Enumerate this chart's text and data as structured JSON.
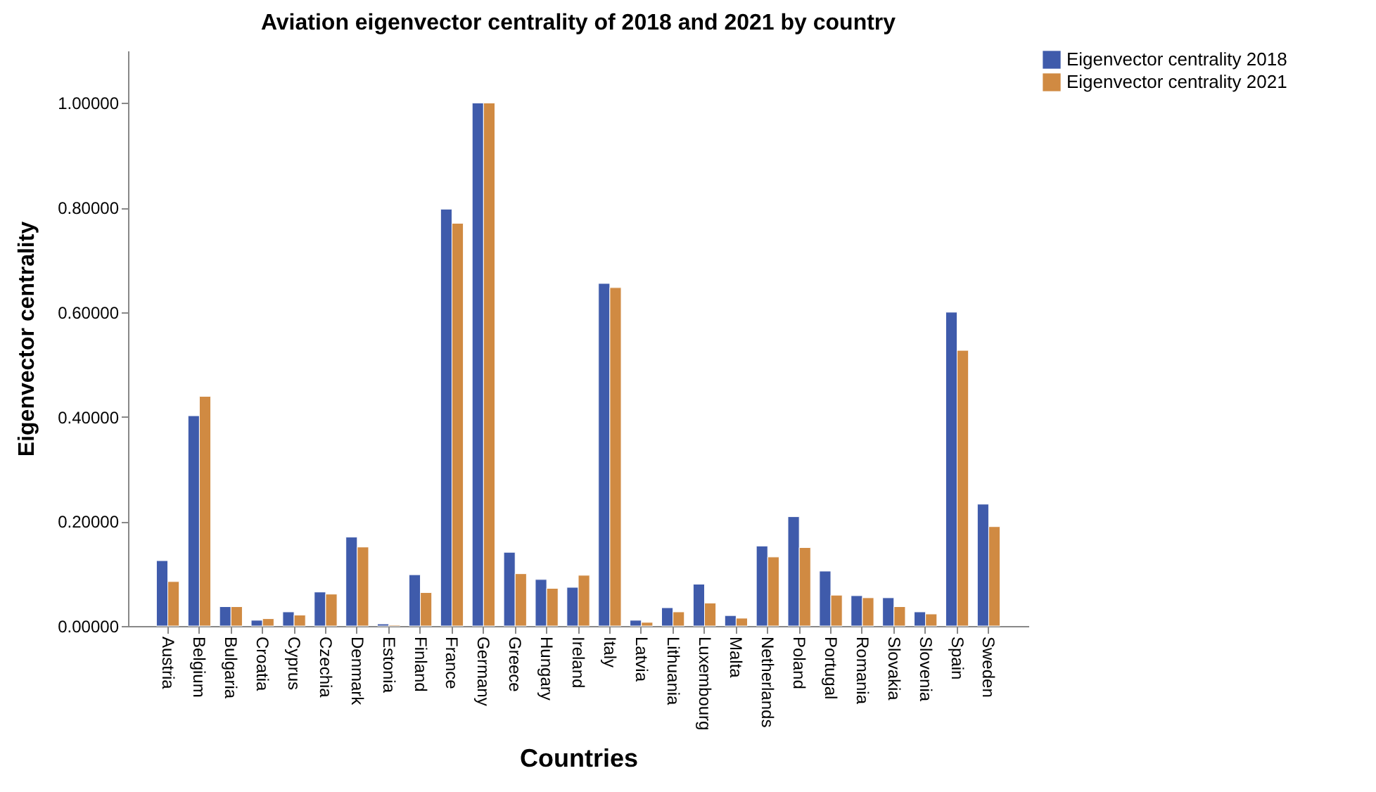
{
  "chart_data": {
    "type": "bar",
    "title": "Aviation eigenvector centrality of 2018 and 2021 by country",
    "xlabel": "Countries",
    "ylabel": "Eigenvector centrality",
    "categories": [
      "Austria",
      "Belgium",
      "Bulgaria",
      "Croatia",
      "Cyprus",
      "Czechia",
      "Denmark",
      "Estonia",
      "Finland",
      "France",
      "Germany",
      "Greece",
      "Hungary",
      "Ireland",
      "Italy",
      "Latvia",
      "Lithuania",
      "Luxembourg",
      "Malta",
      "Netherlands",
      "Poland",
      "Portugal",
      "Romania",
      "Slovakia",
      "Slovenia",
      "Spain",
      "Sweden"
    ],
    "series": [
      {
        "name": "Eigenvector centrality 2018",
        "color": "#3f5bab",
        "values": [
          0.125,
          0.402,
          0.037,
          0.011,
          0.027,
          0.065,
          0.17,
          0.004,
          0.098,
          0.797,
          1.0,
          0.141,
          0.089,
          0.074,
          0.655,
          0.011,
          0.035,
          0.08,
          0.02,
          0.153,
          0.209,
          0.105,
          0.058,
          0.054,
          0.027,
          0.6,
          0.233
        ]
      },
      {
        "name": "Eigenvector centrality 2021",
        "color": "#d08a42",
        "values": [
          0.085,
          0.439,
          0.037,
          0.014,
          0.021,
          0.061,
          0.151,
          0.002,
          0.064,
          0.77,
          1.0,
          0.1,
          0.072,
          0.097,
          0.647,
          0.007,
          0.027,
          0.044,
          0.015,
          0.132,
          0.15,
          0.059,
          0.054,
          0.037,
          0.023,
          0.527,
          0.19
        ]
      }
    ],
    "ylim": [
      0,
      1.1
    ],
    "yticks": [
      {
        "value": 0,
        "label": "0.00000"
      },
      {
        "value": 0.2,
        "label": "0.20000"
      },
      {
        "value": 0.4,
        "label": "0.40000"
      },
      {
        "value": 0.6,
        "label": "0.60000"
      },
      {
        "value": 0.8,
        "label": "0.80000"
      },
      {
        "value": 1.0,
        "label": "1.00000"
      }
    ],
    "grid": false,
    "legend": "top right"
  }
}
